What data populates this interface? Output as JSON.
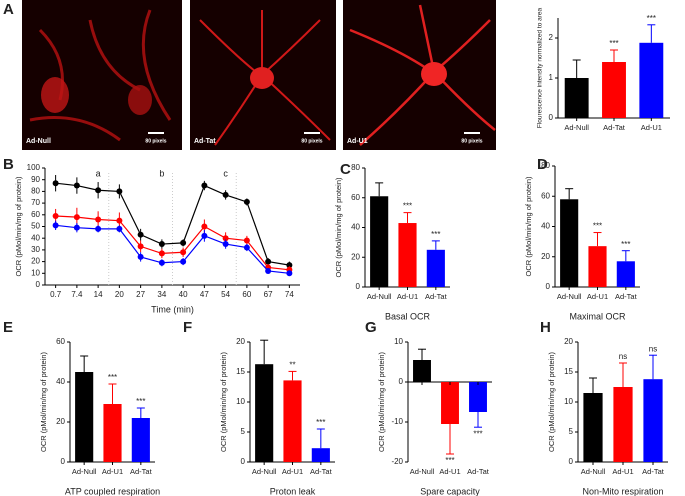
{
  "images": [
    {
      "label": "Ad-Null",
      "scale": "80 pixels"
    },
    {
      "label": "Ad-Tat",
      "scale": "80 pixels"
    },
    {
      "label": "Ad-U1",
      "scale": "80 pixels"
    }
  ],
  "chart_data": [
    {
      "type": "bar",
      "panel": "A",
      "ylabel": "Flourescence intensity normalized to area",
      "categories": [
        "Ad-Null",
        "Ad-Tat",
        "Ad-U1"
      ],
      "values": [
        1.0,
        1.4,
        1.88
      ],
      "errors": [
        0.45,
        0.3,
        0.45
      ],
      "colors": [
        "#000000",
        "#ff0000",
        "#0000ff"
      ],
      "annotations": [
        null,
        "***",
        "***"
      ],
      "ylim": [
        0,
        2.5
      ],
      "yticks": [
        0,
        1,
        2
      ]
    },
    {
      "type": "line",
      "panel": "B",
      "xlabel": "Time (min)",
      "ylabel": "OCR (pMol/min/mg of protein)",
      "categories": [
        "0.7",
        "7.4",
        "14",
        "20",
        "27",
        "34",
        "40",
        "47",
        "54",
        "60",
        "67",
        "74"
      ],
      "annotations": [
        "a",
        "b",
        "c"
      ],
      "series": [
        {
          "color": "#000000",
          "values": [
            87,
            85,
            81,
            80,
            43,
            35,
            36,
            85,
            77,
            71,
            20,
            17
          ],
          "errors": [
            7,
            7,
            7,
            6,
            5,
            4,
            3,
            4,
            4,
            3,
            3,
            3
          ]
        },
        {
          "color": "#ff0000",
          "values": [
            59,
            58,
            56,
            55,
            33,
            27,
            28,
            50,
            40,
            38,
            15,
            13
          ],
          "errors": [
            6,
            8,
            7,
            7,
            5,
            4,
            4,
            6,
            5,
            4,
            3,
            3
          ]
        },
        {
          "color": "#0000ff",
          "values": [
            51,
            49,
            48,
            48,
            24,
            19,
            20,
            42,
            35,
            32,
            12,
            10
          ],
          "errors": [
            4,
            4,
            3,
            3,
            4,
            3,
            3,
            5,
            4,
            3,
            2,
            2
          ]
        }
      ],
      "ylim": [
        0,
        100
      ],
      "yticks": [
        0,
        10,
        20,
        30,
        40,
        50,
        60,
        70,
        80,
        90,
        100
      ]
    },
    {
      "type": "bar",
      "panel": "C",
      "xlabel": "Basal OCR",
      "ylabel": "OCR (pMol/min/mg of protein)",
      "categories": [
        "Ad-Null",
        "Ad-U1",
        "Ad-Tat"
      ],
      "values": [
        61,
        43,
        25
      ],
      "errors": [
        9,
        7,
        6
      ],
      "colors": [
        "#000000",
        "#ff0000",
        "#0000ff"
      ],
      "annotations": [
        null,
        "***",
        "***"
      ],
      "ylim": [
        0,
        80
      ],
      "yticks": [
        0,
        20,
        40,
        60,
        80
      ]
    },
    {
      "type": "bar",
      "panel": "D",
      "xlabel": "Maximal OCR",
      "ylabel": "OCR (pMol/min/mg of protein)",
      "categories": [
        "Ad-Null",
        "Ad-U1",
        "Ad-Tat"
      ],
      "values": [
        58,
        27,
        17
      ],
      "errors": [
        7,
        9,
        7
      ],
      "colors": [
        "#000000",
        "#ff0000",
        "#0000ff"
      ],
      "annotations": [
        null,
        "***",
        "***"
      ],
      "ylim": [
        0,
        80
      ],
      "yticks": [
        0,
        20,
        40,
        60,
        80
      ]
    },
    {
      "type": "bar",
      "panel": "E",
      "xlabel": "ATP coupled respiration",
      "ylabel": "OCR (pMol/min/mg of protein)",
      "categories": [
        "Ad-Null",
        "Ad-U1",
        "Ad-Tat"
      ],
      "values": [
        45,
        29,
        22
      ],
      "errors": [
        8,
        10,
        5
      ],
      "colors": [
        "#000000",
        "#ff0000",
        "#0000ff"
      ],
      "annotations": [
        null,
        "***",
        "***"
      ],
      "ylim": [
        0,
        60
      ],
      "yticks": [
        0,
        20,
        40,
        60
      ]
    },
    {
      "type": "bar",
      "panel": "F",
      "xlabel": "Proton leak",
      "ylabel": "OCR (pMol/min/mg of protein)",
      "categories": [
        "Ad-Null",
        "Ad-U1",
        "Ad-Tat"
      ],
      "values": [
        16.3,
        13.6,
        2.3
      ],
      "errors": [
        4,
        1.5,
        3.2
      ],
      "colors": [
        "#000000",
        "#ff0000",
        "#0000ff"
      ],
      "annotations": [
        null,
        "**",
        "***"
      ],
      "ylim": [
        0,
        20
      ],
      "yticks": [
        0,
        5,
        10,
        15,
        20
      ]
    },
    {
      "type": "bar",
      "panel": "G",
      "xlabel": "Spare capacity",
      "ylabel": "OCR (pMol/min/mg of protein)",
      "categories": [
        "Ad-Null",
        "Ad-U1",
        "Ad-Tat"
      ],
      "values": [
        5.5,
        -10.5,
        -7.5
      ],
      "errors": [
        2.7,
        7.5,
        3.8
      ],
      "colors": [
        "#000000",
        "#ff0000",
        "#0000ff"
      ],
      "annotations": [
        null,
        "***",
        "***"
      ],
      "ylim": [
        -20,
        10
      ],
      "yticks": [
        -20,
        -10,
        0,
        10
      ]
    },
    {
      "type": "bar",
      "panel": "H",
      "xlabel": "Non-Mito respiration",
      "ylabel": "OCR (pMol/min/mg of protein)",
      "categories": [
        "Ad-Null",
        "Ad-U1",
        "Ad-Tat"
      ],
      "values": [
        11.5,
        12.5,
        13.8
      ],
      "errors": [
        2.5,
        4,
        4
      ],
      "colors": [
        "#000000",
        "#ff0000",
        "#0000ff"
      ],
      "annotations": [
        null,
        "ns",
        "ns"
      ],
      "ylim": [
        0,
        20
      ],
      "yticks": [
        0,
        5,
        10,
        15,
        20
      ]
    }
  ]
}
